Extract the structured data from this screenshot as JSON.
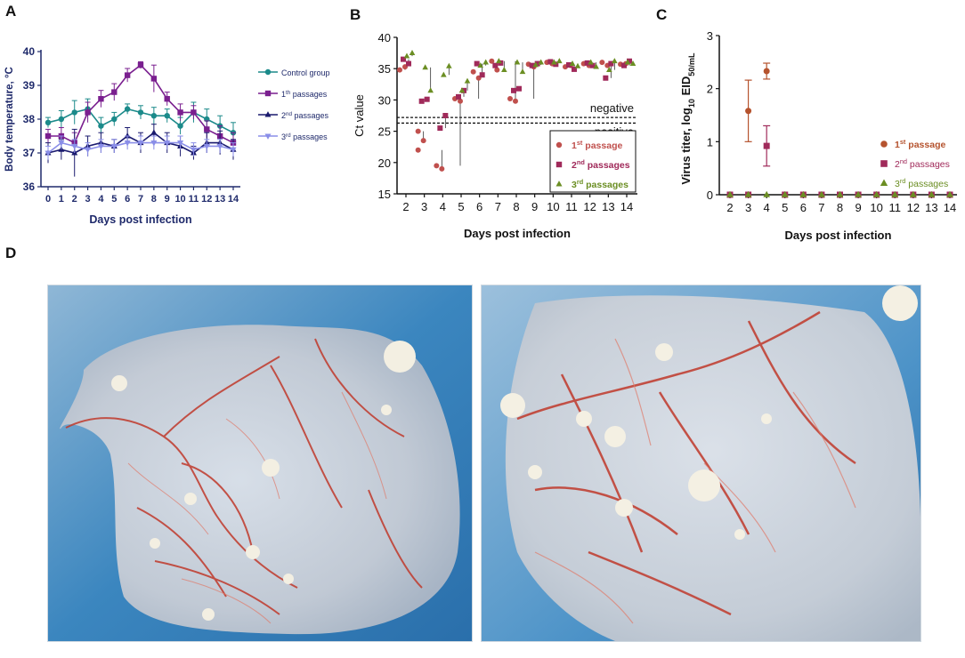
{
  "panels": [
    {
      "letter": "A"
    },
    {
      "letter": "B"
    },
    {
      "letter": "C"
    },
    {
      "letter": "D"
    }
  ],
  "chart_data": [
    {
      "panel": "A",
      "type": "line",
      "ylabel": "Body temperature, °C",
      "xlabel": "Days post infection",
      "ylim": [
        36,
        40
      ],
      "yticks": [
        36,
        37,
        38,
        39,
        40
      ],
      "categories": [
        "0",
        "1",
        "2",
        "3",
        "4",
        "5",
        "6",
        "7",
        "8",
        "9",
        "10",
        "11",
        "12",
        "13",
        "14"
      ],
      "series": [
        {
          "name": "Control group",
          "sup": "",
          "tail": "",
          "color": "#1b8a8a",
          "marker": "circle",
          "values": [
            37.9,
            38.0,
            38.2,
            38.3,
            37.8,
            38.0,
            38.3,
            38.2,
            38.1,
            38.1,
            37.8,
            38.2,
            38.0,
            37.8,
            37.6
          ],
          "err": [
            0.15,
            0.25,
            0.35,
            0.3,
            0.25,
            0.2,
            0.15,
            0.2,
            0.25,
            0.2,
            0.25,
            0.3,
            0.3,
            0.3,
            0.3
          ]
        },
        {
          "name": "1",
          "sup": "th",
          "tail": "passages",
          "color": "#7a1f8f",
          "marker": "square",
          "values": [
            37.5,
            37.5,
            37.3,
            38.2,
            38.6,
            38.8,
            39.3,
            39.6,
            39.2,
            38.6,
            38.2,
            38.2,
            37.7,
            37.5,
            37.3
          ],
          "err": [
            0.2,
            0.25,
            0.3,
            0.3,
            0.25,
            0.25,
            0.2,
            0.1,
            0.4,
            0.2,
            0.25,
            0.2,
            0.25,
            0.3,
            0.3
          ]
        },
        {
          "name": "2",
          "sup": "nd",
          "tail": "passages",
          "color": "#1a1a6e",
          "marker": "triangle",
          "values": [
            37.0,
            37.1,
            37.0,
            37.2,
            37.3,
            37.2,
            37.5,
            37.3,
            37.6,
            37.3,
            37.2,
            37.0,
            37.3,
            37.3,
            37.1
          ],
          "err": [
            0.3,
            0.3,
            0.7,
            0.3,
            0.3,
            0.2,
            0.25,
            0.3,
            0.25,
            0.3,
            0.3,
            0.2,
            0.3,
            0.35,
            0.3
          ]
        },
        {
          "name": "3",
          "sup": "rd",
          "tail": "passages",
          "color": "#8a8ee8",
          "marker": "triangle-down",
          "values": [
            37.0,
            37.3,
            37.2,
            37.1,
            37.2,
            37.2,
            37.3,
            37.3,
            37.3,
            37.3,
            37.3,
            37.1,
            37.2,
            37.2,
            37.1
          ],
          "err": [
            0.2,
            0.2,
            0.2,
            0.2,
            0.2,
            0.2,
            0.2,
            0.2,
            0.2,
            0.2,
            0.2,
            0.2,
            0.2,
            0.2,
            0.2
          ]
        }
      ]
    },
    {
      "panel": "B",
      "type": "scatter",
      "ylabel": "Ct value",
      "xlabel": "Days post infection",
      "ylim": [
        15,
        40
      ],
      "yticks": [
        15,
        20,
        25,
        30,
        35,
        40
      ],
      "categories": [
        "2",
        "3",
        "4",
        "5",
        "6",
        "7",
        "8",
        "9",
        "10",
        "11",
        "12",
        "13",
        "14"
      ],
      "thresholds": [
        {
          "y": 27.2,
          "label": "negative",
          "pos": "above"
        },
        {
          "y": 26.3,
          "label": "positive",
          "pos": "below"
        }
      ],
      "series": [
        {
          "name": "1",
          "sup": "st",
          "tail": "passage",
          "color": "#c0504d",
          "marker": "circle",
          "points": [
            [
              2,
              34.8
            ],
            [
              2,
              35.3
            ],
            [
              3,
              25
            ],
            [
              3,
              23.5
            ],
            [
              3,
              22
            ],
            [
              4,
              19
            ],
            [
              4,
              19.5
            ],
            [
              5,
              29.8
            ],
            [
              5,
              30.2
            ],
            [
              6,
              33.5
            ],
            [
              6,
              34.5
            ],
            [
              7,
              34.8
            ],
            [
              7,
              36.2
            ],
            [
              8,
              29.8
            ],
            [
              8,
              30.2
            ],
            [
              9,
              35.3
            ],
            [
              9,
              35.7
            ],
            [
              10,
              35.8
            ],
            [
              10,
              36
            ],
            [
              11,
              35.5
            ],
            [
              11,
              35.3
            ],
            [
              12,
              35.5
            ],
            [
              12,
              35.8
            ],
            [
              13,
              35.5
            ],
            [
              13,
              36
            ],
            [
              14,
              35.8
            ],
            [
              14,
              35.7
            ]
          ]
        },
        {
          "name": "2",
          "sup": "nd",
          "tail": "passages",
          "color": "#a02a5a",
          "marker": "square",
          "points": [
            [
              2,
              36.5
            ],
            [
              2,
              35.8
            ],
            [
              3,
              29.8
            ],
            [
              3,
              30.1
            ],
            [
              4,
              25.5
            ],
            [
              4,
              27.5
            ],
            [
              5,
              30.5
            ],
            [
              5,
              31.5
            ],
            [
              6,
              35.8
            ],
            [
              6,
              34
            ],
            [
              7,
              35.5
            ],
            [
              7,
              35.9
            ],
            [
              8,
              31.5
            ],
            [
              8,
              31.8
            ],
            [
              9,
              35.5
            ],
            [
              9,
              35.8
            ],
            [
              10,
              36.1
            ],
            [
              10,
              35.7
            ],
            [
              11,
              35.6
            ],
            [
              11,
              34.9
            ],
            [
              12,
              35.9
            ],
            [
              12,
              35.5
            ],
            [
              13,
              33.5
            ],
            [
              13,
              35.8
            ],
            [
              14,
              35.5
            ],
            [
              14,
              36.2
            ]
          ]
        },
        {
          "name": "3",
          "sup": "rd",
          "tail": "passages",
          "color": "#6b8e23",
          "marker": "triangle",
          "points": [
            [
              2,
              37
            ],
            [
              2,
              37.5
            ],
            [
              3,
              35.2
            ],
            [
              3,
              31.5
            ],
            [
              4,
              34
            ],
            [
              4,
              35.4
            ],
            [
              5,
              31.5
            ],
            [
              5,
              33
            ],
            [
              6,
              35.5
            ],
            [
              6,
              36
            ],
            [
              7,
              36.2
            ],
            [
              7,
              34.8
            ],
            [
              8,
              36
            ],
            [
              8,
              34.5
            ],
            [
              9,
              35.6
            ],
            [
              9,
              36
            ],
            [
              10,
              36
            ],
            [
              10,
              36.2
            ],
            [
              11,
              35.8
            ],
            [
              11,
              35.4
            ],
            [
              12,
              36
            ],
            [
              12,
              35.3
            ],
            [
              13,
              34.8
            ],
            [
              13,
              36.2
            ],
            [
              14,
              36
            ],
            [
              14,
              35.8
            ]
          ]
        }
      ]
    },
    {
      "panel": "C",
      "type": "scatter",
      "ylabel": "Virus titer, log",
      "ylabel_sub": "10",
      "ylabel_tail": " EID",
      "ylabel_sub2": "50/mL",
      "xlabel": "Days post infection",
      "ylim": [
        0,
        3
      ],
      "yticks": [
        0,
        1,
        2,
        3
      ],
      "categories": [
        "2",
        "3",
        "4",
        "5",
        "6",
        "7",
        "8",
        "9",
        "10",
        "11",
        "12",
        "13",
        "14"
      ],
      "series": [
        {
          "name": "1",
          "sup": "st",
          "tail": "passage",
          "color": "#b5532e",
          "marker": "circle",
          "values": [
            0,
            1.58,
            2.33,
            0,
            0,
            0,
            0,
            0,
            0,
            0,
            0,
            0,
            0
          ],
          "err": [
            0,
            0.58,
            0.15,
            0,
            0,
            0,
            0,
            0,
            0,
            0,
            0,
            0,
            0
          ]
        },
        {
          "name": "2",
          "sup": "nd",
          "tail": "passages",
          "color": "#a02a5a",
          "marker": "square",
          "values": [
            0,
            0,
            0.92,
            0,
            0,
            0,
            0,
            0,
            0,
            0,
            0,
            0,
            0
          ],
          "err": [
            0,
            0,
            0.38,
            0,
            0,
            0,
            0,
            0,
            0,
            0,
            0,
            0,
            0
          ]
        },
        {
          "name": "3",
          "sup": "rd",
          "tail": "passages",
          "color": "#6b8e23",
          "marker": "triangle",
          "values": [
            0,
            0,
            0,
            0,
            0,
            0,
            0,
            0,
            0,
            0,
            0,
            0,
            0
          ],
          "err": [
            0,
            0,
            0,
            0,
            0,
            0,
            0,
            0,
            0,
            0,
            0,
            0,
            0
          ]
        }
      ]
    }
  ]
}
